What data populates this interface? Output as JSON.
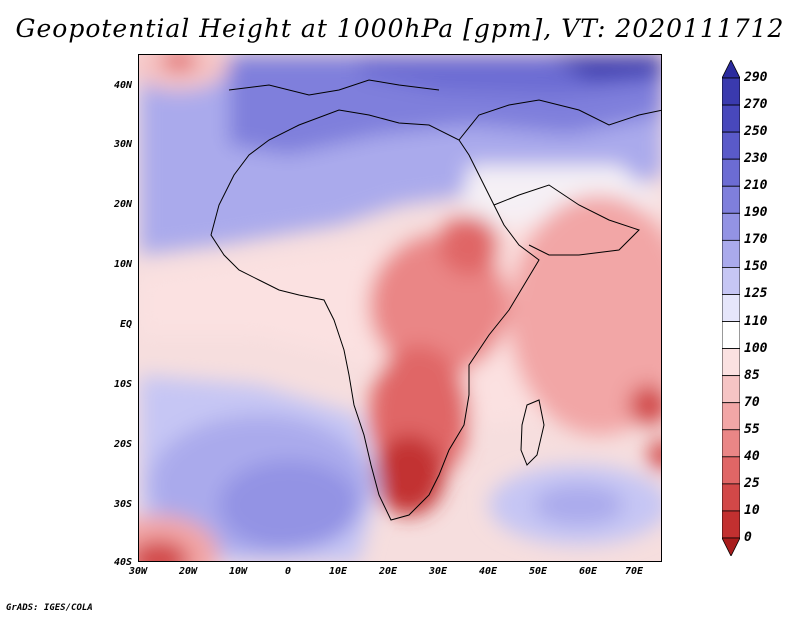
{
  "title": "Geopotential Height at 1000hPa [gpm], VT: 2020111712",
  "credit": "GrADS: IGES/COLA",
  "latitude_labels": [
    "40N",
    "30N",
    "20N",
    "10N",
    "EQ",
    "10S",
    "20S",
    "30S",
    "40S"
  ],
  "longitude_labels": [
    "30W",
    "20W",
    "10W",
    "0",
    "10E",
    "20E",
    "30E",
    "40E",
    "50E",
    "60E",
    "70E"
  ],
  "colorbar": {
    "labels": [
      "290",
      "270",
      "250",
      "230",
      "210",
      "190",
      "170",
      "150",
      "125",
      "110",
      "100",
      "85",
      "70",
      "55",
      "40",
      "25",
      "10",
      "0"
    ],
    "colors": [
      "#2b2b9e",
      "#3a3aae",
      "#4848bc",
      "#5a5ac9",
      "#6c6cd3",
      "#7f7fdc",
      "#9393e4",
      "#aaaaec",
      "#c6c6f4",
      "#e6e6fb",
      "#ffffff",
      "#fbe1e1",
      "#f6c4c4",
      "#f2a6a6",
      "#ea8686",
      "#e06666",
      "#d24848",
      "#c23030",
      "#a81c1c"
    ]
  }
}
